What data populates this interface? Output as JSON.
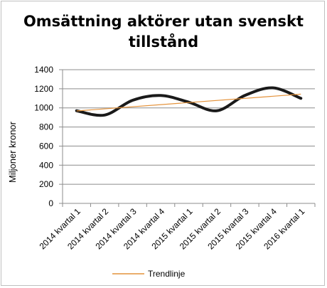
{
  "chart_data": {
    "type": "line",
    "title_lines": [
      "Omsättning aktörer utan svenskt",
      "tillstånd"
    ],
    "xlabel": "",
    "ylabel": "Miljoner kronor",
    "categories": [
      "2014 kvartal 1",
      "2014 kvartal 2",
      "2014 kvartal 3",
      "2014 kvartal 4",
      "2015 kvartal 1",
      "2015 kvartal 2",
      "2015 kvartal 3",
      "2015 kvartal 4",
      "2016 kvartal 1"
    ],
    "ylim": [
      0,
      1400
    ],
    "yticks": [
      0,
      200,
      400,
      600,
      800,
      1000,
      1200,
      1400
    ],
    "grid": true,
    "legend_position": "bottom",
    "series": [
      {
        "values": [
          970,
          925,
          1080,
          1130,
          1060,
          970,
          1130,
          1210,
          1100
        ],
        "color": "#1a1a1a",
        "style": "smooth",
        "in_legend": false
      },
      {
        "name": "Trendlinje",
        "values": [
          968,
          990,
          1012,
          1034,
          1056,
          1078,
          1100,
          1122,
          1144
        ],
        "color": "#e4923a",
        "style": "straight",
        "in_legend": true
      }
    ]
  }
}
